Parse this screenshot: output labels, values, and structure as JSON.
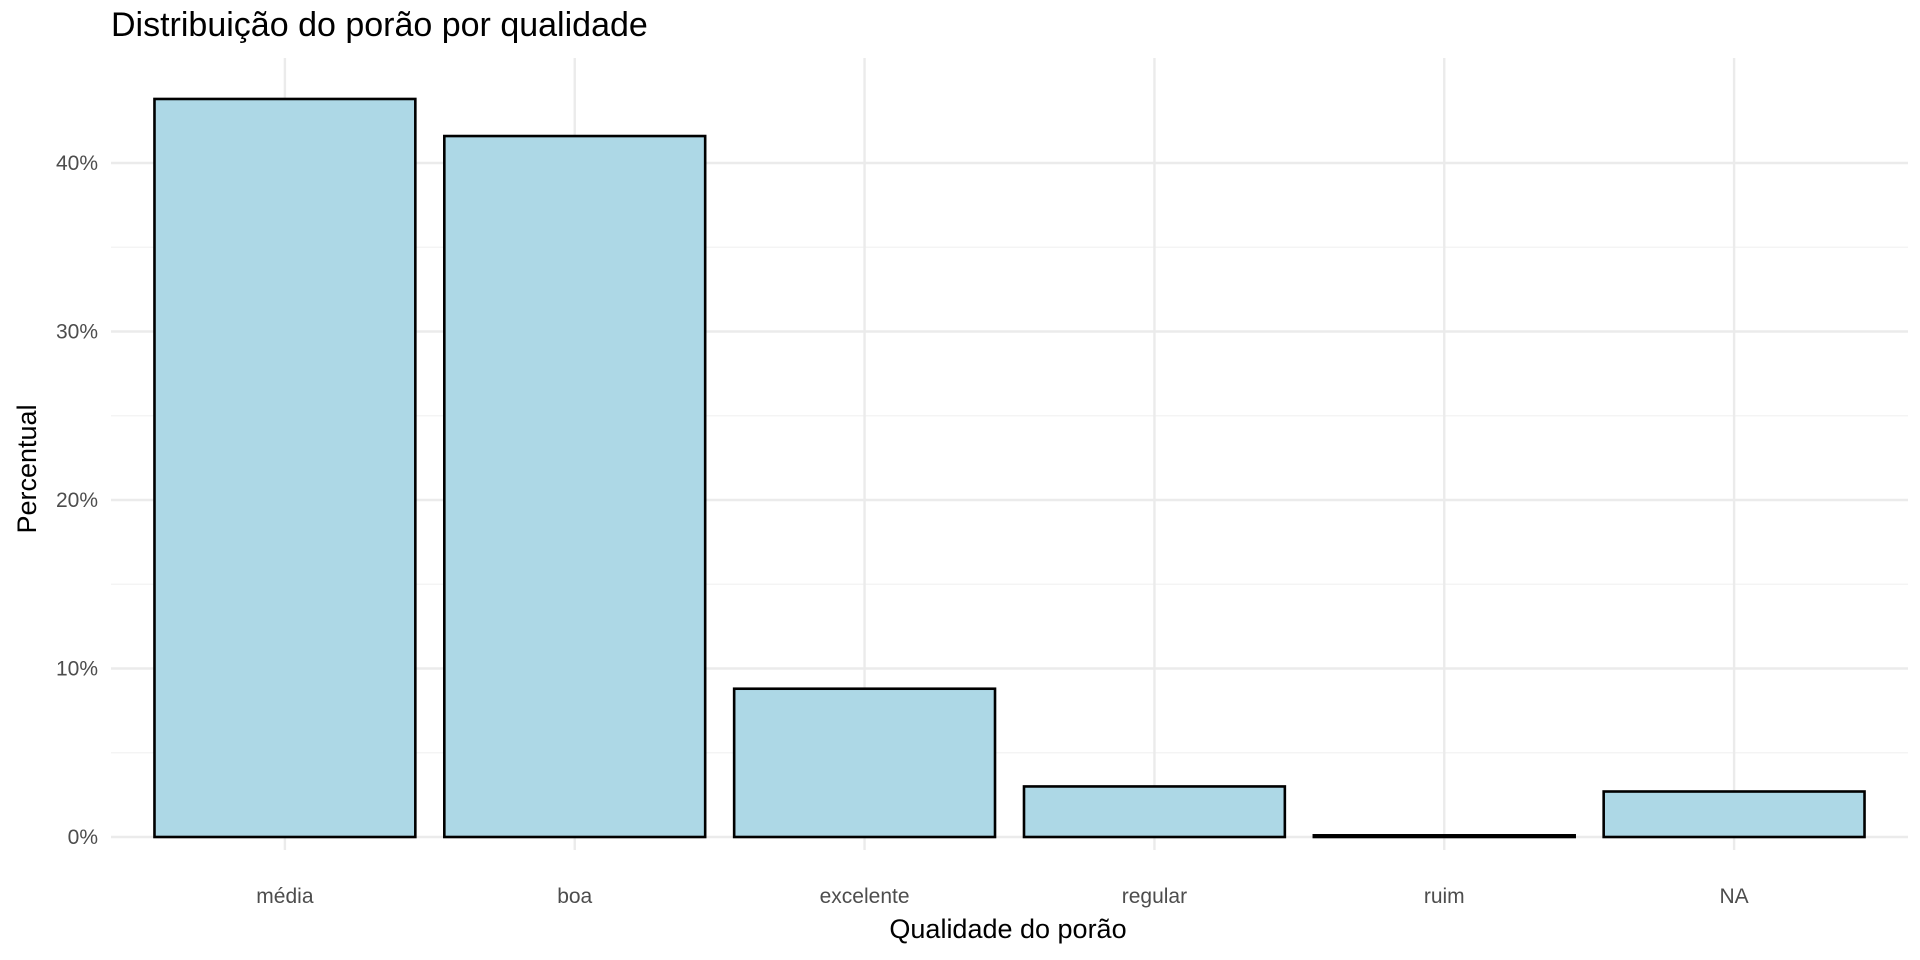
{
  "chart_data": {
    "type": "bar",
    "title": "Distribuição do porão por qualidade",
    "xlabel": "Qualidade do porão",
    "ylabel": "Percentual",
    "categories": [
      "média",
      "boa",
      "excelente",
      "regular",
      "ruim",
      "NA"
    ],
    "values": [
      43.8,
      41.6,
      8.8,
      3.0,
      0.1,
      2.7
    ],
    "ylim": [
      0,
      45
    ],
    "y_ticks": [
      0,
      10,
      20,
      30,
      40
    ],
    "y_tick_labels": [
      "0%",
      "10%",
      "20%",
      "30%",
      "40%"
    ],
    "grid": true,
    "legend": "none",
    "colors": {
      "bar_fill": "#add8e6",
      "bar_stroke": "#000000",
      "grid_major": "#ebebeb",
      "grid_minor": "#f4f4f4"
    }
  }
}
